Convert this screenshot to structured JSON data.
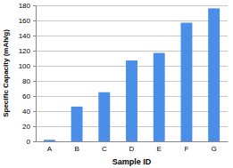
{
  "chart_data": {
    "type": "bar",
    "x_label": "Sample ID",
    "y_label": "Specific Capacity (mAh/g)",
    "categories": [
      "A",
      "B",
      "C",
      "D",
      "E",
      "F",
      "G"
    ],
    "values": [
      2,
      46,
      65,
      107,
      117,
      157,
      176
    ],
    "color": "#4a8ee8",
    "ylim": [
      0,
      180
    ],
    "yticks": [
      0,
      20,
      40,
      60,
      80,
      100,
      120,
      140,
      160,
      180
    ],
    "grid": true
  }
}
